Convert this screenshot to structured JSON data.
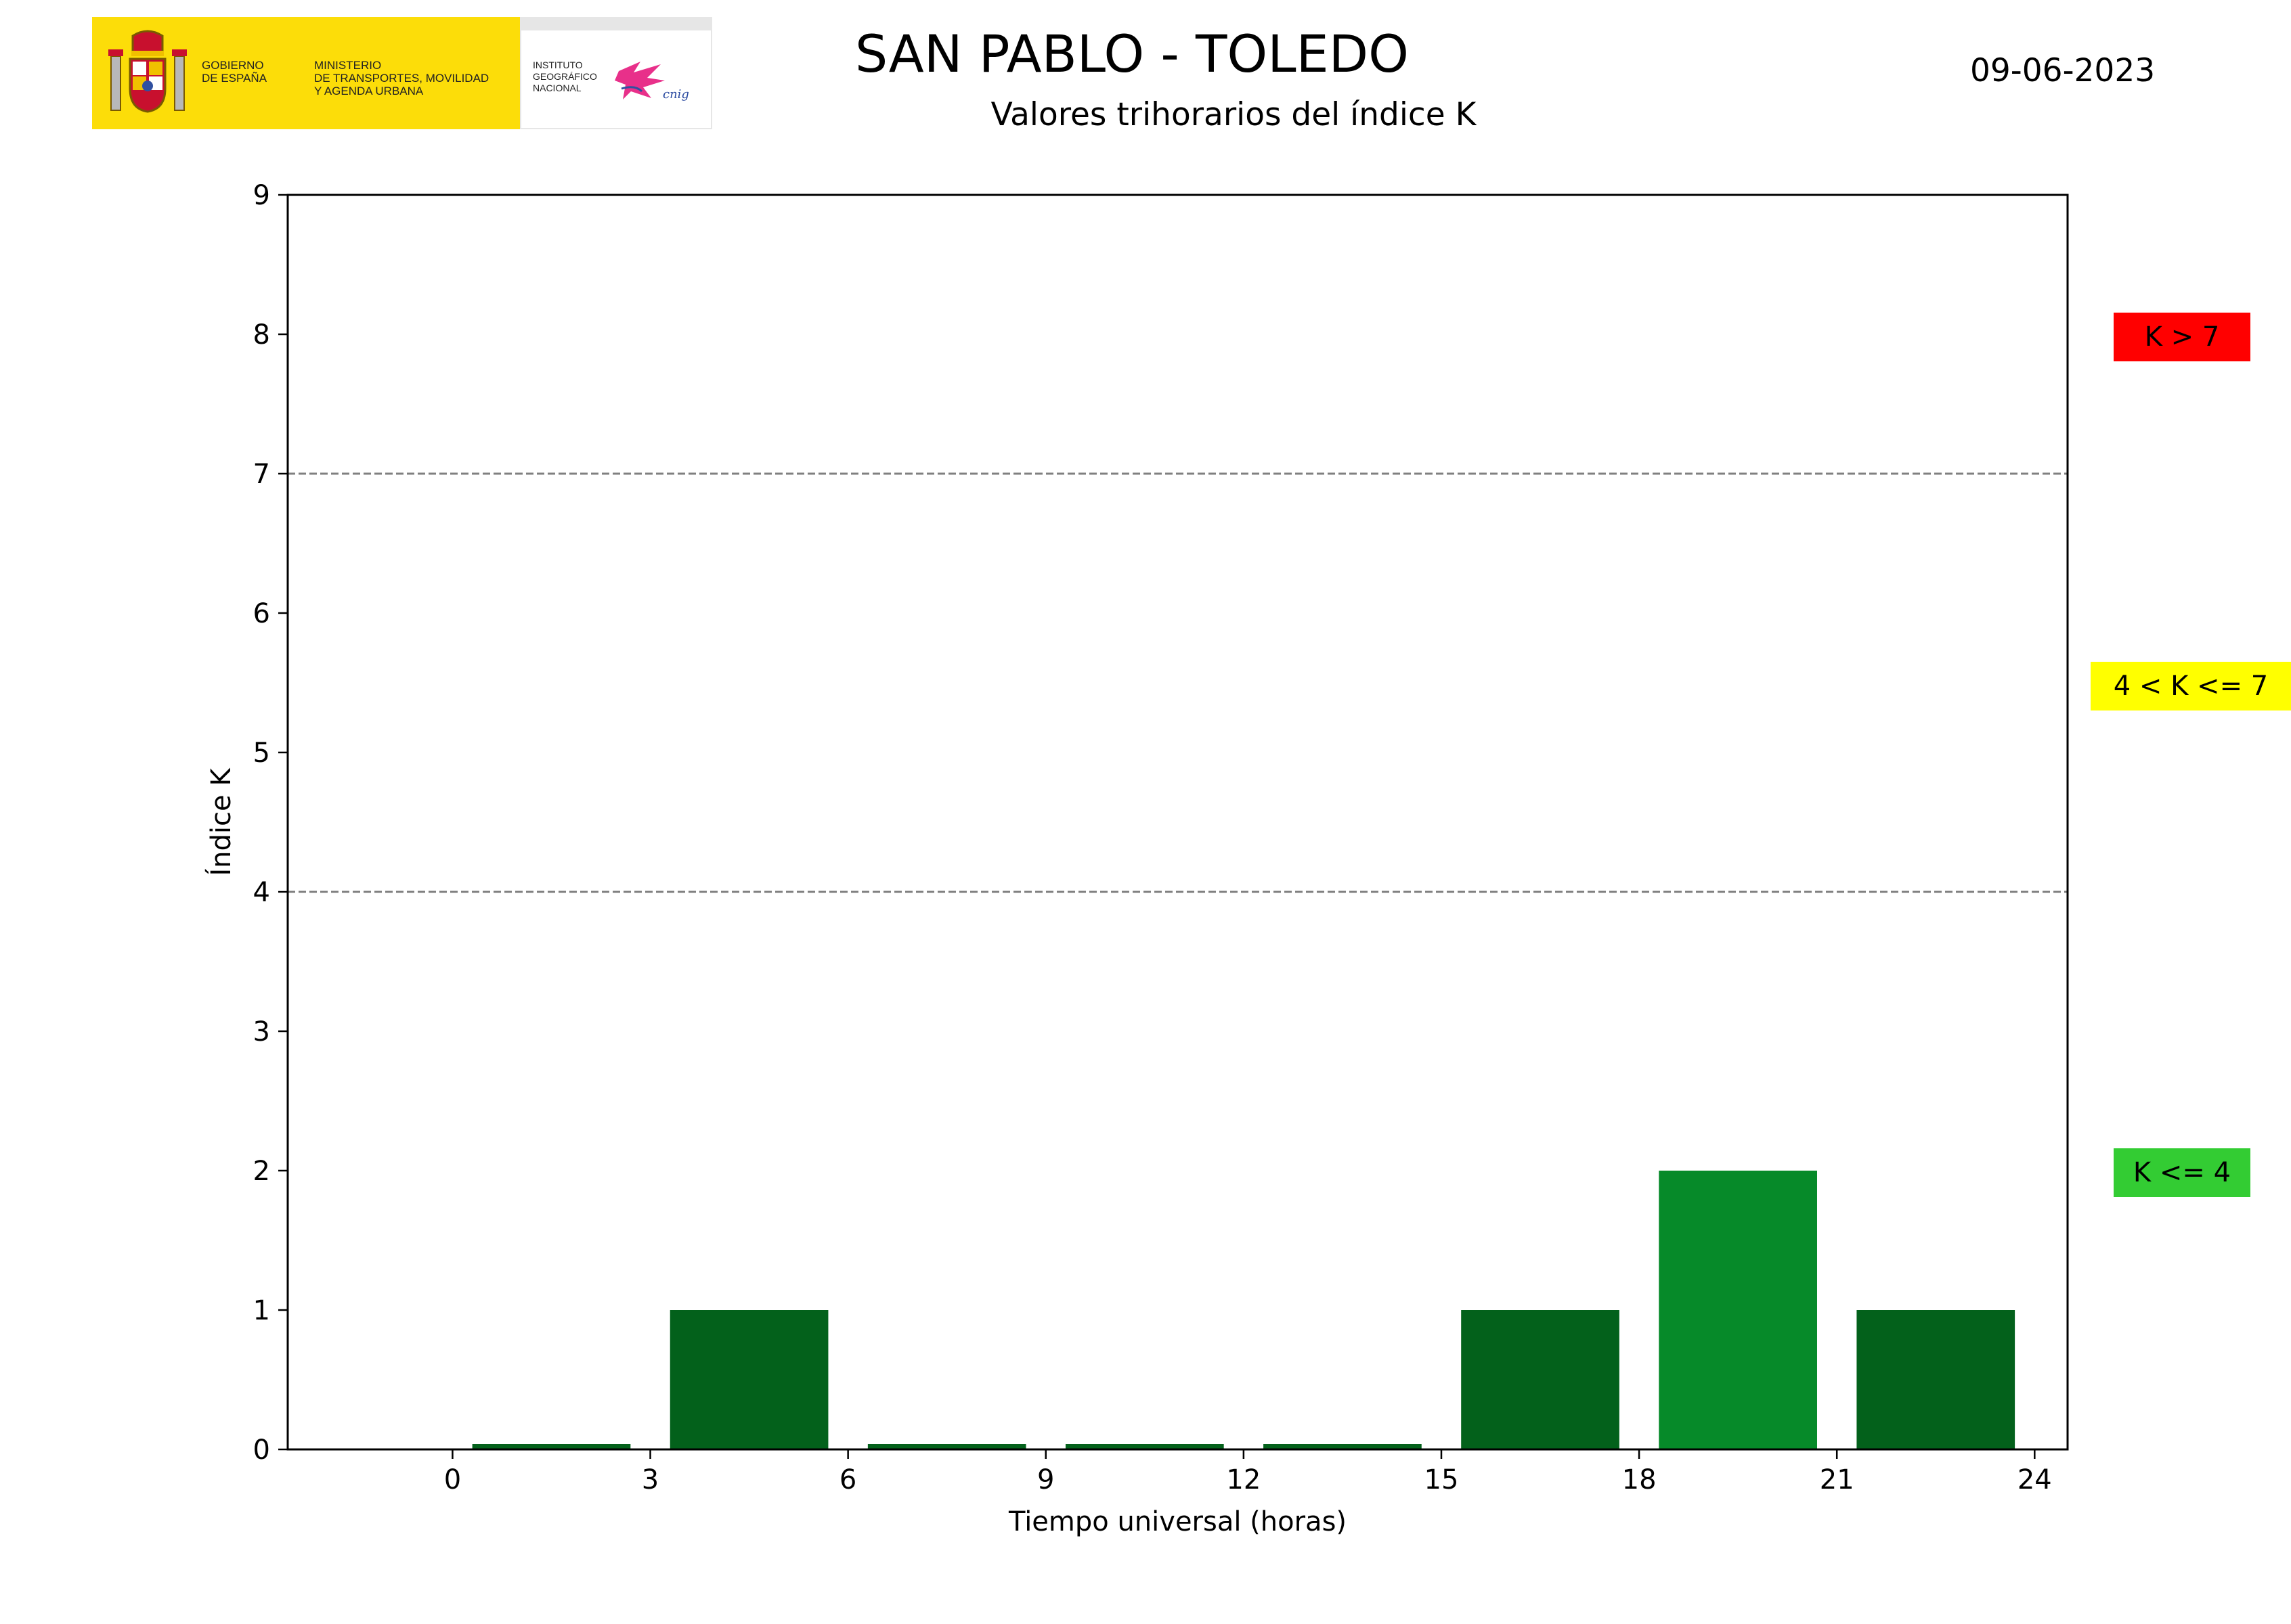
{
  "header": {
    "title": "SAN PABLO - TOLEDO",
    "subtitle": "Valores trihorarios del índice K",
    "date": "09-06-2023"
  },
  "logo": {
    "gobierno": "GOBIERNO\nDE ESPAÑA",
    "ministerio": "MINISTERIO\nDE TRANSPORTES, MOVILIDAD\nY AGENDA URBANA",
    "instituto": "INSTITUTO\nGEOGRÁFICO\nNACIONAL",
    "cnig": "cnig",
    "colors": {
      "band": "#fcdd09",
      "splash": "#e8308a"
    }
  },
  "legend": [
    {
      "label": "K > 7",
      "color": "#ff0000"
    },
    {
      "label": "4 < K <= 7",
      "color": "#ffff00"
    },
    {
      "label": "K <= 4",
      "color": "#33cc33"
    }
  ],
  "chart_data": {
    "type": "bar",
    "xlabel": "Tiempo universal (horas)",
    "ylabel": "Índice K",
    "xlim": [
      -2.5,
      24.5
    ],
    "ylim": [
      0,
      9
    ],
    "xticks": [
      0,
      3,
      6,
      9,
      12,
      15,
      18,
      21,
      24
    ],
    "yticks": [
      0,
      1,
      2,
      3,
      4,
      5,
      6,
      7,
      8,
      9
    ],
    "bar_width_hours": 2.4,
    "x": [
      1.5,
      4.5,
      7.5,
      10.5,
      13.5,
      16.5,
      19.5,
      22.5
    ],
    "values": [
      0,
      1,
      0,
      0,
      0,
      1,
      2,
      1
    ],
    "bar_colors": [
      "#03611b",
      "#03611b",
      "#03611b",
      "#03611b",
      "#03611b",
      "#03611b",
      "#068a29",
      "#03611b"
    ],
    "thresholds": [
      4,
      7
    ],
    "threshold_style": "dashed gray",
    "grid": false
  }
}
